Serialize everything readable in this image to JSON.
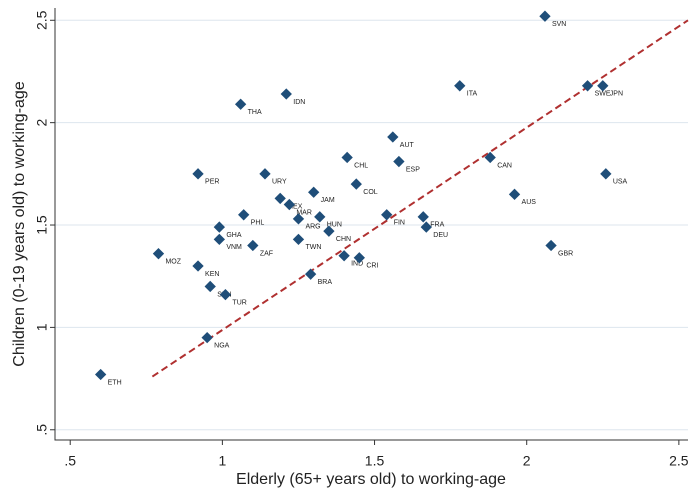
{
  "chart_data": {
    "type": "scatter",
    "x_label": "Elderly (65+ years old) to working-age",
    "y_label": "Children (0-19 years old) to working-age",
    "labels": [
      "SVN",
      "SWE",
      "JPN",
      "ITA",
      "IDN",
      "THA",
      "AUT",
      "CHL",
      "ESP",
      "CAN",
      "COL",
      "PER",
      "URY",
      "JAM",
      "USA",
      "AUS",
      "MEX",
      "MAR",
      "ARG",
      "PHL",
      "HUN",
      "FIN",
      "FRA",
      "DEU",
      "GHA",
      "CHN",
      "VNM",
      "ZAF",
      "TWN",
      "IND",
      "CRI",
      "GBR",
      "MOZ",
      "KEN",
      "BRA",
      "SEN",
      "TUR",
      "NGA",
      "ETH"
    ],
    "x": [
      2.06,
      2.2,
      2.25,
      1.78,
      1.21,
      1.06,
      1.56,
      1.41,
      1.58,
      1.88,
      1.44,
      0.92,
      1.14,
      1.3,
      2.26,
      1.96,
      1.19,
      1.22,
      1.25,
      1.07,
      1.32,
      1.54,
      1.66,
      1.67,
      0.99,
      1.35,
      0.99,
      1.1,
      1.25,
      1.4,
      1.45,
      2.08,
      0.79,
      0.92,
      1.29,
      0.96,
      1.01,
      0.95,
      0.6
    ],
    "y": [
      2.52,
      2.18,
      2.18,
      2.18,
      2.14,
      2.09,
      1.93,
      1.83,
      1.81,
      1.83,
      1.7,
      1.75,
      1.75,
      1.66,
      1.75,
      1.65,
      1.63,
      1.6,
      1.53,
      1.55,
      1.54,
      1.55,
      1.54,
      1.49,
      1.49,
      1.47,
      1.43,
      1.4,
      1.43,
      1.35,
      1.34,
      1.4,
      1.36,
      1.3,
      1.26,
      1.2,
      1.16,
      0.95,
      0.77
    ],
    "color": "#1f4e79",
    "fit_line": {
      "x": [
        0.77,
        2.53
      ],
      "y": [
        0.76,
        2.5
      ],
      "color": "#b03030"
    },
    "xlim": [
      0.45,
      2.53
    ],
    "ylim": [
      0.45,
      2.56
    ],
    "xticks": [
      {
        "value": 0.5,
        "label": ".5"
      },
      1,
      1.5,
      2,
      2.5
    ],
    "yticks": [
      {
        "value": 0.5,
        "label": ".5"
      },
      1,
      1.5,
      2,
      2.5
    ],
    "grid": true
  }
}
